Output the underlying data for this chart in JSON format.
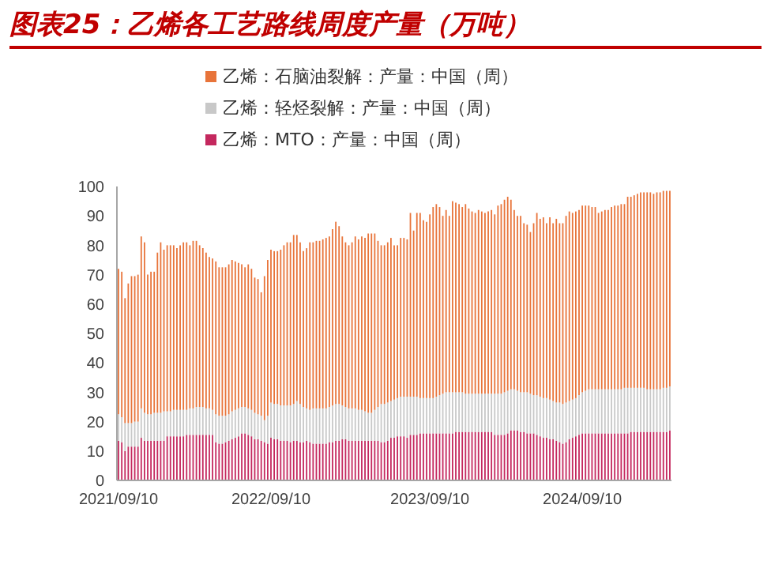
{
  "chart_data": {
    "type": "bar",
    "title": "图表25：乙烯各工艺路线周度产量（万吨）",
    "stacked": true,
    "legend": "top",
    "ylim": [
      0,
      100
    ],
    "yticks": [
      0,
      10,
      20,
      30,
      40,
      50,
      60,
      70,
      80,
      90,
      100
    ],
    "categories": [
      "2021/09/10",
      null,
      null,
      null,
      null,
      null,
      null,
      null,
      null,
      null,
      null,
      null,
      null,
      null,
      null,
      null,
      null,
      null,
      null,
      null,
      null,
      null,
      null,
      null,
      null,
      null,
      null,
      null,
      null,
      null,
      null,
      null,
      null,
      null,
      null,
      null,
      null,
      null,
      null,
      null,
      null,
      null,
      null,
      null,
      null,
      null,
      null,
      "2022/09/10",
      null,
      null,
      null,
      null,
      null,
      null,
      null,
      null,
      null,
      null,
      null,
      null,
      null,
      null,
      null,
      null,
      null,
      null,
      null,
      null,
      null,
      null,
      null,
      null,
      null,
      null,
      null,
      null,
      null,
      null,
      null,
      null,
      null,
      null,
      null,
      null,
      null,
      null,
      null,
      null,
      null,
      null,
      null,
      null,
      null,
      null,
      null,
      null,
      "2023/09/10",
      null,
      null,
      null,
      null,
      null,
      null,
      null,
      null,
      null,
      null,
      null,
      null,
      null,
      null,
      null,
      null,
      null,
      null,
      null,
      null,
      null,
      null,
      null,
      null,
      null,
      null,
      null,
      null,
      null,
      null,
      null,
      null,
      null,
      null,
      null,
      null,
      null,
      null,
      null,
      null,
      null,
      null,
      null,
      null,
      null,
      null,
      "2024/09/10",
      null,
      null,
      null,
      null,
      null,
      null,
      null,
      null,
      null,
      null,
      null,
      null,
      null,
      null,
      null,
      null,
      null,
      null,
      null,
      null,
      null,
      null,
      null,
      null,
      null,
      null,
      null
    ],
    "series": [
      {
        "name": "乙烯：MTO：产量：中国（周）",
        "color": "#c4285e",
        "values": [
          13.5,
          13,
          10,
          11.5,
          11.5,
          11.5,
          11.5,
          14.5,
          13.5,
          13.5,
          13.5,
          13.5,
          13.5,
          13.5,
          13.5,
          15,
          15,
          15,
          15,
          15,
          15,
          15.5,
          15.5,
          15.5,
          15.5,
          15.5,
          15.5,
          15.5,
          15.5,
          15.5,
          13,
          12.5,
          12.5,
          13,
          13.5,
          14,
          14.5,
          15,
          16,
          16,
          15.5,
          15,
          14,
          14,
          13.5,
          13,
          12.5,
          14.5,
          14,
          14,
          13.5,
          13.5,
          13.5,
          13,
          13.5,
          13.5,
          13,
          13,
          13.5,
          13,
          12.5,
          12.5,
          12.5,
          12.5,
          12.5,
          13,
          13,
          13.5,
          13.5,
          14,
          14,
          13.5,
          13.5,
          13.5,
          13.5,
          13.5,
          13.5,
          13.5,
          13.5,
          13.5,
          13.5,
          13,
          13,
          13.5,
          14.5,
          14.5,
          15,
          15,
          15,
          14.5,
          15.5,
          15.5,
          15.5,
          16,
          16,
          16,
          16,
          16,
          16,
          16,
          16,
          16,
          16,
          16,
          16.5,
          16.5,
          16.5,
          16.5,
          16.5,
          16.5,
          16.5,
          16.5,
          16.5,
          16.5,
          16.5,
          16.5,
          15.5,
          15.5,
          15.5,
          15.5,
          16,
          17,
          17,
          17,
          16.5,
          16.5,
          16,
          16,
          16,
          15.5,
          15,
          14.5,
          14.5,
          14,
          14,
          13.5,
          13,
          12.5,
          13,
          14,
          14.5,
          15,
          15.5,
          16,
          16,
          16,
          16,
          16,
          16,
          16,
          16,
          16,
          16,
          16,
          16,
          16,
          16,
          16,
          16.5,
          16.5,
          16.5,
          16.5,
          16.5,
          16.5,
          16.5,
          16.5,
          16.5,
          16.5,
          16.5,
          16.5,
          17
        ]
      },
      {
        "name": "乙烯：轻烃裂解：产量：中国（周）",
        "color": "#c8c8c8",
        "values": [
          9,
          8.5,
          9.5,
          8,
          8,
          8.5,
          8.5,
          10,
          9.5,
          9,
          9,
          9.5,
          9.5,
          9.5,
          10,
          8.5,
          8.5,
          9,
          9,
          9,
          9,
          8.5,
          9,
          9,
          9.5,
          9.5,
          9.5,
          9,
          9,
          8.5,
          9.5,
          9.5,
          9.5,
          9,
          9,
          9.5,
          9.5,
          9.5,
          9,
          9,
          9,
          9,
          9,
          8.5,
          8.5,
          7.5,
          9.5,
          12,
          12,
          12,
          12,
          12,
          12,
          12.5,
          12.5,
          13.5,
          13,
          12,
          11,
          11,
          12,
          12,
          12,
          12,
          12,
          12,
          12.5,
          12.5,
          12.5,
          11.5,
          11,
          11,
          11,
          11,
          10.5,
          10.5,
          10,
          9.5,
          9.5,
          10.5,
          11.5,
          13,
          13,
          13,
          12.5,
          13,
          13,
          13.5,
          13.5,
          14,
          13,
          13,
          13,
          12,
          12,
          12,
          12,
          12,
          12.5,
          13,
          13.5,
          14,
          14,
          14,
          13.5,
          13.5,
          13.5,
          13,
          13,
          13,
          13,
          13,
          13,
          13,
          13,
          13,
          14,
          14,
          14,
          14.5,
          14.5,
          14,
          14,
          13.5,
          13.5,
          13.5,
          14,
          13.5,
          13,
          13.5,
          13.5,
          13.5,
          13.5,
          13.5,
          13,
          13,
          13.5,
          13.5,
          13.5,
          13,
          13,
          13,
          13.5,
          14,
          14.5,
          15,
          15,
          15,
          15,
          15,
          15,
          15,
          15,
          15,
          15,
          15,
          15.5,
          15.5,
          15,
          15,
          15,
          15,
          15,
          14.5,
          14.5,
          14.5,
          14.5,
          14.5,
          15,
          15,
          15
        ]
      },
      {
        "name": "乙烯：石脑油裂解：产量：中国（周）",
        "color": "#e8743a",
        "values": [
          49.5,
          49.5,
          42.5,
          47.5,
          50,
          49.5,
          50,
          58.5,
          58,
          47.5,
          48.5,
          48,
          54.5,
          58,
          55,
          56.5,
          56.5,
          56,
          55,
          56,
          57,
          57,
          55.5,
          57,
          56.5,
          55,
          54,
          53,
          51.5,
          51.5,
          52,
          50.5,
          50.5,
          50.5,
          51,
          51.5,
          50.5,
          49.5,
          48.5,
          47.5,
          49,
          48,
          46,
          46,
          42,
          49,
          53,
          52,
          52,
          52,
          53,
          54.5,
          55.5,
          55.5,
          57.5,
          56.5,
          55,
          53,
          54.5,
          57,
          56.5,
          57,
          57,
          57.5,
          58,
          58,
          60,
          62,
          60.5,
          57.5,
          56,
          55.5,
          56.5,
          58.5,
          58,
          59,
          59,
          61,
          61,
          60,
          56.5,
          54,
          54,
          54.5,
          55.5,
          52.5,
          52,
          54,
          54,
          53.5,
          62.5,
          56.5,
          62.5,
          63,
          60.5,
          60,
          62.5,
          65,
          65.5,
          64,
          60.5,
          62,
          60,
          65,
          64.5,
          64,
          63,
          64.5,
          63,
          62,
          61.5,
          62.5,
          62,
          61.5,
          62,
          62.5,
          61,
          64,
          64.5,
          65.5,
          66,
          64.5,
          61,
          59.5,
          60,
          57.5,
          57,
          55,
          58.5,
          62,
          60.5,
          61.5,
          59.5,
          62,
          60.5,
          62.5,
          61,
          61.5,
          63.5,
          64.5,
          63.5,
          63.5,
          63,
          63.5,
          63,
          62.5,
          62,
          62,
          60,
          60.5,
          61,
          61,
          62,
          62.5,
          62.5,
          63,
          62.5,
          65,
          65,
          65.5,
          66,
          66.5,
          66.5,
          67,
          67,
          66.5,
          67,
          67,
          67,
          67,
          66.5
        ]
      }
    ]
  }
}
